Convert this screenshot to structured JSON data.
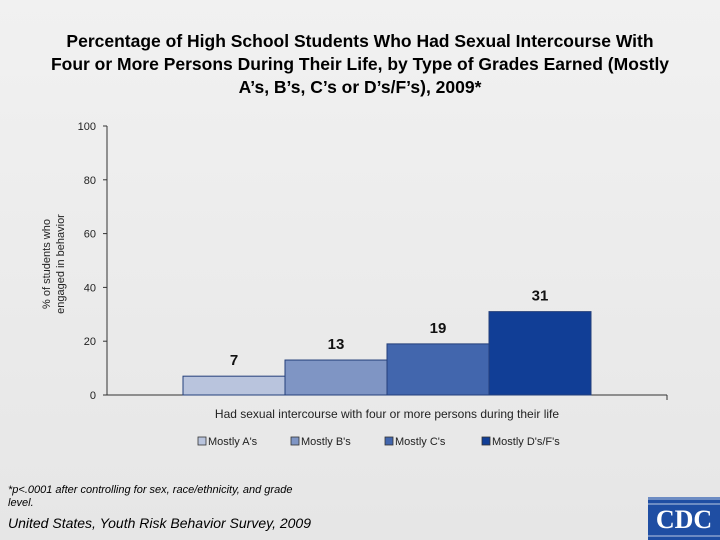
{
  "title_lines": [
    "Percentage of High School Students Who Had Sexual Intercourse With",
    "Four or More Persons During Their Life, by Type of Grades Earned (Mostly",
    "A’s, B’s, C’s or D’s/F’s), 2009*"
  ],
  "chart_data": {
    "type": "bar",
    "title": "Percentage of High School Students Who Had Sexual Intercourse With Four or More Persons During Their Life, by Type of Grades Earned (Mostly A’s, B’s, C’s or D’s/F’s), 2009*",
    "categories": [
      "Had sexual intercourse with four or more persons during their life"
    ],
    "xlabel": "Had sexual intercourse with four or more persons during their life",
    "ylabel_lines": [
      "% of students who",
      "engaged in behavior"
    ],
    "ylim": [
      0,
      100
    ],
    "yticks": [
      0,
      20,
      40,
      60,
      80,
      100
    ],
    "grid": false,
    "legend_position": "bottom",
    "series": [
      {
        "name": "Mostly A's",
        "values": [
          7
        ],
        "color": "#b9c4dd"
      },
      {
        "name": "Mostly B's",
        "values": [
          13
        ],
        "color": "#7f95c4"
      },
      {
        "name": "Mostly C's",
        "values": [
          19
        ],
        "color": "#4266ad"
      },
      {
        "name": "Mostly D's/F's",
        "values": [
          31
        ],
        "color": "#113e96"
      }
    ]
  },
  "footnote": "*p<.0001 after controlling for sex, race/ethnicity, and grade level.",
  "source": "United States, Youth Risk Behavior Survey, 2009",
  "logo_text": "CDC",
  "colors": {
    "logo_blue": "#1f4ea3",
    "axis": "#333333"
  }
}
